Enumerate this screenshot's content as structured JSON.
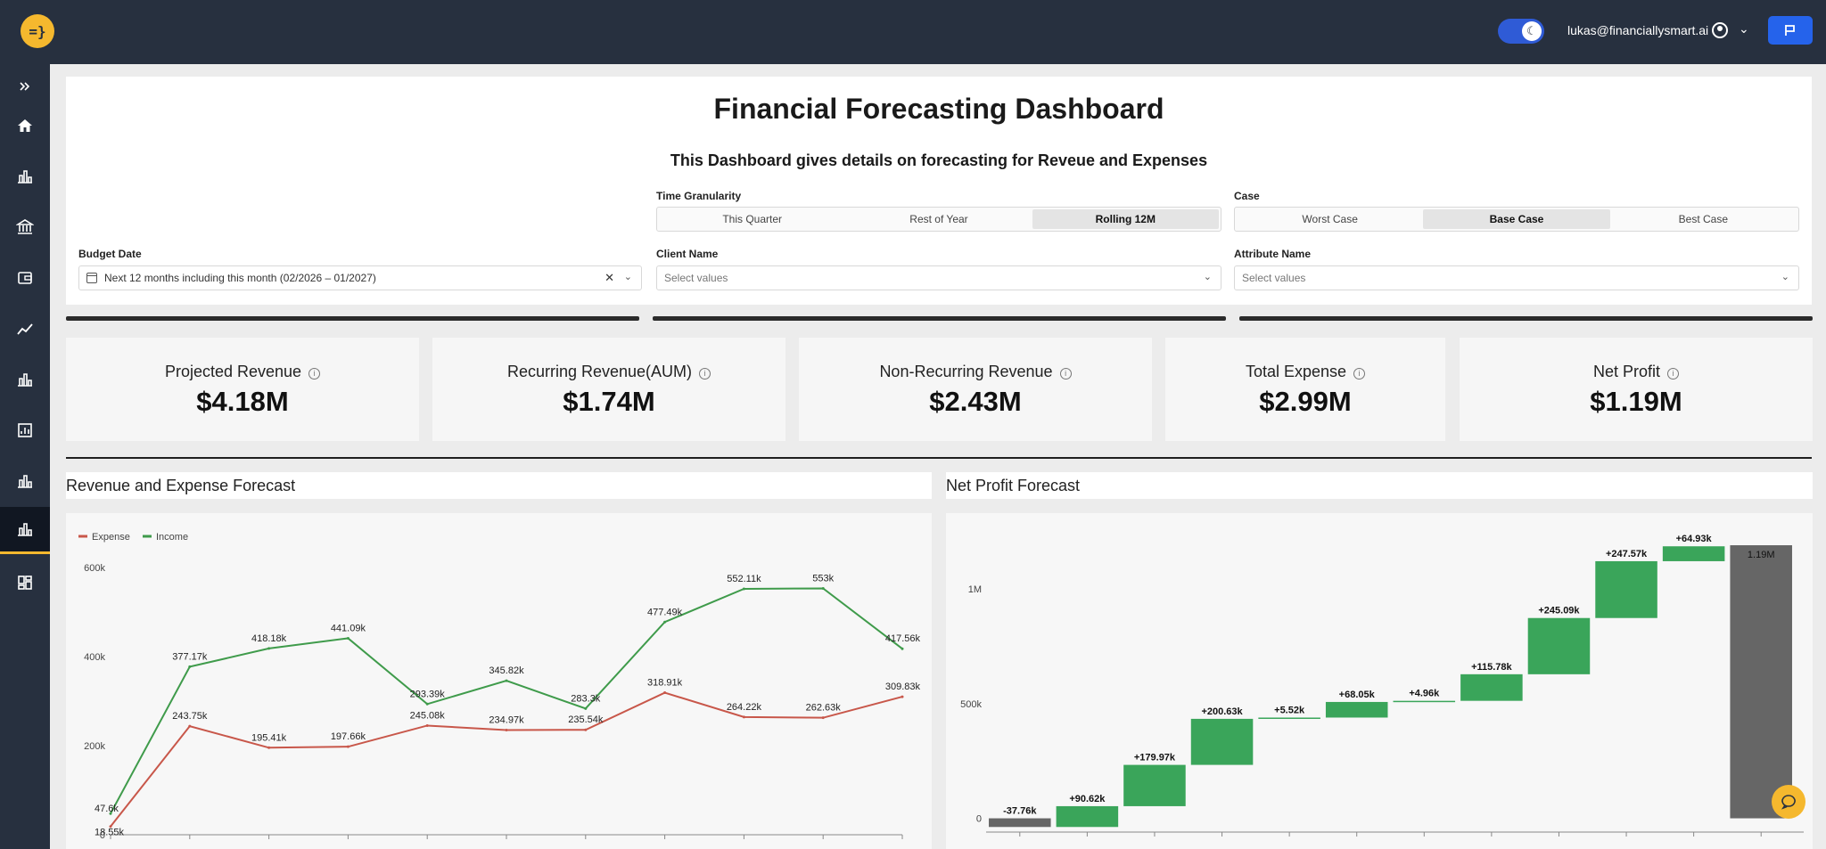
{
  "header": {
    "logo_text": "=}",
    "user_email": "lukas@financiallysmart.ai",
    "theme_toggle_icon": "moon-icon",
    "feedback_icon": "flag-icon"
  },
  "sidebar": {
    "items": [
      {
        "icon": "expand-icon"
      },
      {
        "icon": "home-icon"
      },
      {
        "icon": "bar-chart-icon"
      },
      {
        "icon": "bank-icon"
      },
      {
        "icon": "wallet-icon"
      },
      {
        "icon": "trend-icon"
      },
      {
        "icon": "bar-chart-icon"
      },
      {
        "icon": "report-icon"
      },
      {
        "icon": "bar-chart-icon"
      },
      {
        "icon": "bar-chart-icon",
        "active": true
      },
      {
        "icon": "dashboard-icon"
      }
    ]
  },
  "dashboard": {
    "title": "Financial Forecasting Dashboard",
    "subtitle": "This Dashboard gives details on forecasting for Reveue and Expenses"
  },
  "filters": {
    "time_granularity": {
      "label": "Time Granularity",
      "options": [
        "This Quarter",
        "Rest of Year",
        "Rolling 12M"
      ],
      "selected": "Rolling 12M"
    },
    "case": {
      "label": "Case",
      "options": [
        "Worst Case",
        "Base Case",
        "Best Case"
      ],
      "selected": "Base Case"
    },
    "budget_date": {
      "label": "Budget Date",
      "value": "Next 12 months including this month (02/2026 – 01/2027)"
    },
    "client_name": {
      "label": "Client Name",
      "placeholder": "Select values"
    },
    "attribute_name": {
      "label": "Attribute Name",
      "placeholder": "Select values"
    }
  },
  "kpis": [
    {
      "label": "Projected Revenue",
      "value": "$4.18M"
    },
    {
      "label": "Recurring Revenue(AUM)",
      "value": "$1.74M"
    },
    {
      "label": "Non-Recurring Revenue",
      "value": "$2.43M"
    },
    {
      "label": "Total Expense",
      "value": "$2.99M"
    },
    {
      "label": "Net Profit",
      "value": "$1.19M"
    }
  ],
  "chart_data": [
    {
      "type": "line",
      "title": "Revenue and Expense Forecast",
      "ylim": [
        0,
        600000
      ],
      "yticks": [
        "0",
        "200k",
        "400k",
        "600k"
      ],
      "colors": {
        "Expense": "#c8574a",
        "Income": "#3f9b4b"
      },
      "series": [
        {
          "name": "Expense",
          "values": [
            18550,
            243750,
            195410,
            197660,
            245080,
            234970,
            235540,
            318910,
            264220,
            262630,
            309830
          ],
          "labels": [
            "18.55k",
            "243.75k",
            "195.41k",
            "197.66k",
            "245.08k",
            "234.97k",
            "235.54k",
            "318.91k",
            "264.22k",
            "262.63k",
            "309.83k"
          ]
        },
        {
          "name": "Income",
          "values": [
            47600,
            377170,
            418180,
            441090,
            293390,
            345820,
            283300,
            477490,
            552110,
            553000,
            417560
          ],
          "labels": [
            "47.6k",
            "377.17k",
            "418.18k",
            "441.09k",
            "293.39k",
            "345.82k",
            "283.3k",
            "477.49k",
            "552.11k",
            "553k",
            "417.56k"
          ]
        }
      ]
    },
    {
      "type": "waterfall",
      "title": "Net Profit Forecast",
      "ylim": [
        -60000,
        1260000
      ],
      "yticks": [
        {
          "v": 0,
          "label": "0"
        },
        {
          "v": 500000,
          "label": "500k"
        },
        {
          "v": 1000000,
          "label": "1M"
        }
      ],
      "colors": {
        "increase": "#3aa55a",
        "decrease": "#666666",
        "total": "#666666"
      },
      "steps": [
        {
          "delta": -37760,
          "label": "-37.76k"
        },
        {
          "delta": 90620,
          "label": "+90.62k"
        },
        {
          "delta": 179970,
          "label": "+179.97k"
        },
        {
          "delta": 200630,
          "label": "+200.63k"
        },
        {
          "delta": 5520,
          "label": "+5.52k"
        },
        {
          "delta": 68050,
          "label": "+68.05k"
        },
        {
          "delta": 4960,
          "label": "+4.96k"
        },
        {
          "delta": 115780,
          "label": "+115.78k"
        },
        {
          "delta": 245090,
          "label": "+245.09k"
        },
        {
          "delta": 247570,
          "label": "+247.57k"
        },
        {
          "delta": 64930,
          "label": "+64.93k"
        }
      ],
      "total": {
        "value": 1190000,
        "label": "1.19M"
      }
    }
  ]
}
